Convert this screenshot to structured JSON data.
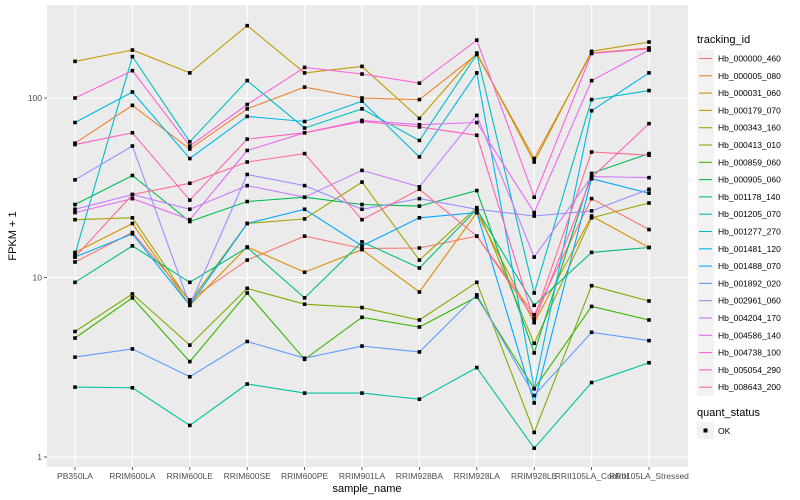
{
  "chart_data": {
    "type": "line",
    "title": "",
    "xlabel": "sample_name",
    "ylabel": "FPKM + 1",
    "yscale": "log10",
    "ylim": [
      0.9,
      280
    ],
    "yticks": [
      1,
      10,
      100
    ],
    "ytick_labels": [
      "1",
      "10",
      "100"
    ],
    "grid": true,
    "legend_position": "right",
    "categories": [
      "PB350LA",
      "RRIM600LA",
      "RRIM600LE",
      "RRIM600SE",
      "RRIM600PE",
      "RRIM901LA",
      "RRIM928BA",
      "RRIM928LA",
      "RRIM928LE",
      "RRII105LA_Control",
      "RRII105LA_Stressed"
    ],
    "series": [
      {
        "name": "Hb_000000_460",
        "color": "#F8766D",
        "values": [
          12.2,
          17.8,
          7.5,
          12.5,
          17.0,
          14.5,
          14.6,
          17.0,
          6.2,
          27.5,
          18.5
        ]
      },
      {
        "name": "Hb_000005_080",
        "color": "#EA8331",
        "values": [
          56,
          91,
          52,
          87,
          115,
          100,
          98,
          175,
          46,
          178,
          190
        ]
      },
      {
        "name": "Hb_000031_060",
        "color": "#D89000",
        "values": [
          13.8,
          20.0,
          7.0,
          14.8,
          10.7,
          14.3,
          8.3,
          23.0,
          5.6,
          22.0,
          14.7
        ]
      },
      {
        "name": "Hb_000179_070",
        "color": "#C09B00",
        "values": [
          160,
          185,
          138,
          253,
          138,
          150,
          77,
          178,
          44,
          182,
          205
        ]
      },
      {
        "name": "Hb_000343_160",
        "color": "#A3A500",
        "values": [
          21.0,
          21.5,
          7.3,
          20.0,
          21.2,
          34.0,
          12.5,
          24.5,
          4.3,
          21.5,
          26.0
        ]
      },
      {
        "name": "Hb_000413_010",
        "color": "#7CAE00",
        "values": [
          5.0,
          8.1,
          4.2,
          8.7,
          7.1,
          6.8,
          5.8,
          9.4,
          1.37,
          9.0,
          7.4
        ]
      },
      {
        "name": "Hb_000859_060",
        "color": "#39B600",
        "values": [
          4.6,
          7.7,
          3.4,
          8.2,
          3.5,
          6.0,
          5.3,
          7.8,
          2.4,
          6.9,
          5.8
        ]
      },
      {
        "name": "Hb_000905_060",
        "color": "#00BB4E",
        "values": [
          25.5,
          37.0,
          20.5,
          26.5,
          28.0,
          25.5,
          25.0,
          30.5,
          3.8,
          38.0,
          49.0
        ]
      },
      {
        "name": "Hb_001178_140",
        "color": "#00BF7D",
        "values": [
          9.4,
          15.0,
          9.4,
          14.7,
          7.7,
          15.8,
          11.3,
          24.0,
          7.0,
          13.8,
          14.7
        ]
      },
      {
        "name": "Hb_001205_070",
        "color": "#00C1A3",
        "values": [
          2.45,
          2.43,
          1.5,
          2.55,
          2.27,
          2.27,
          2.1,
          3.15,
          1.12,
          2.6,
          3.35
        ]
      },
      {
        "name": "Hb_001277_270",
        "color": "#00BFC4",
        "values": [
          13.5,
          170,
          57,
          125,
          68,
          87,
          58,
          175,
          8.2,
          98,
          110
        ]
      },
      {
        "name": "Hb_001481_120",
        "color": "#00B8E7",
        "values": [
          73,
          108,
          46,
          79,
          74,
          96,
          47,
          138,
          2.4,
          85,
          138
        ]
      },
      {
        "name": "Hb_001488_070",
        "color": "#00A9FF",
        "values": [
          13.0,
          17.5,
          7.0,
          20.0,
          24.0,
          15.0,
          21.5,
          23.0,
          2.0,
          35.5,
          29.5
        ]
      },
      {
        "name": "Hb_001892_020",
        "color": "#619CFF",
        "values": [
          3.6,
          4.0,
          2.8,
          4.4,
          3.55,
          4.15,
          3.85,
          8.0,
          2.2,
          4.95,
          4.45
        ]
      },
      {
        "name": "Hb_002961_060",
        "color": "#9590FF",
        "values": [
          35,
          54,
          7.0,
          37.5,
          32.5,
          24.0,
          27.5,
          24.0,
          22.0,
          23.5,
          31.0
        ]
      },
      {
        "name": "Hb_004204_170",
        "color": "#C77CFF",
        "values": [
          24.0,
          29.0,
          24.0,
          32.5,
          28.0,
          39.5,
          32.0,
          80.0,
          13.0,
          36.5,
          36.0
        ]
      },
      {
        "name": "Hb_004586_140",
        "color": "#E76BF3",
        "values": [
          23.0,
          27.5,
          21.0,
          51,
          64,
          75,
          71,
          73,
          23.0,
          125,
          185
        ]
      },
      {
        "name": "Hb_004738_100",
        "color": "#FA62DB",
        "values": [
          100,
          142,
          54,
          92,
          148,
          136,
          121,
          210,
          28,
          177,
          188
        ]
      },
      {
        "name": "Hb_005054_290",
        "color": "#FF62BC",
        "values": [
          55,
          64,
          27,
          59,
          64,
          74,
          69,
          62,
          5.7,
          36,
          72
        ]
      },
      {
        "name": "Hb_008643_200",
        "color": "#FF6C91",
        "values": [
          13.0,
          29.0,
          33.5,
          44,
          49,
          21.0,
          31.0,
          17.0,
          5.9,
          50,
          48
        ]
      }
    ],
    "marker": {
      "shape": "point",
      "color": "#000000"
    }
  },
  "legend": {
    "title": "tracking_id",
    "shape_title": "quant_status",
    "shape_items": [
      {
        "label": "OK"
      }
    ]
  }
}
